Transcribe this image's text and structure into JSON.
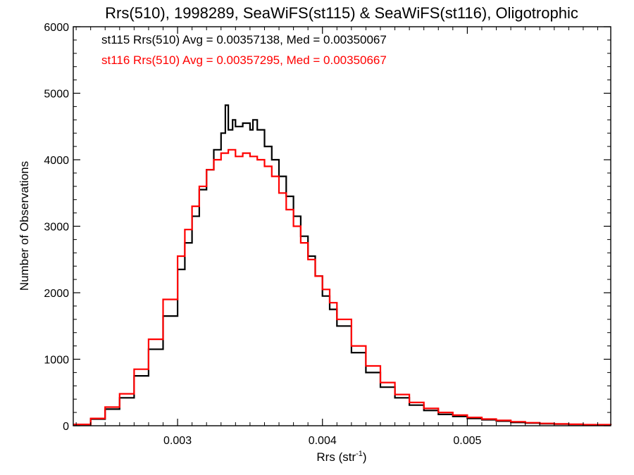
{
  "chart_data": {
    "type": "line",
    "title": "Rrs(510), 1998289, SeaWiFS(st115) & SeaWiFS(st116), Oligotrophic",
    "xlabel": "Rrs (str",
    "xlabel_superscript": "-1",
    "xlabel_suffix": ")",
    "ylabel": "Number of Observations",
    "xlim": [
      0.00228,
      0.00599
    ],
    "ylim": [
      0,
      6000
    ],
    "x_ticks": [
      "0.003",
      "0.004",
      "0.005"
    ],
    "x_tick_values": [
      0.003,
      0.004,
      0.005
    ],
    "y_ticks": [
      "0",
      "1000",
      "2000",
      "3000",
      "4000",
      "5000",
      "6000"
    ],
    "y_tick_values": [
      0,
      1000,
      2000,
      3000,
      4000,
      5000,
      6000
    ],
    "grid": false,
    "annotations": [
      {
        "text": "st115 Rrs(510) Avg = 0.00357138, Med = 0.00350067",
        "color": "#000000"
      },
      {
        "text": "st116 Rrs(510) Avg = 0.00357295, Med = 0.00350667",
        "color": "#ff0000"
      }
    ],
    "series": [
      {
        "color": "#000000",
        "x": [
          0.00228,
          0.0024,
          0.0025,
          0.0026,
          0.0027,
          0.0028,
          0.0029,
          0.003,
          0.00305,
          0.0031,
          0.00315,
          0.0032,
          0.00325,
          0.0033,
          0.00333,
          0.00335,
          0.00338,
          0.0034,
          0.00345,
          0.0035,
          0.00352,
          0.00355,
          0.0036,
          0.00365,
          0.0037,
          0.00375,
          0.0038,
          0.00385,
          0.0039,
          0.00395,
          0.004,
          0.00405,
          0.0041,
          0.0042,
          0.0043,
          0.0044,
          0.0045,
          0.0046,
          0.0047,
          0.0048,
          0.0049,
          0.005,
          0.0051,
          0.0052,
          0.0053,
          0.0054,
          0.0055,
          0.0056,
          0.0057,
          0.0058,
          0.00599
        ],
        "y": [
          20,
          100,
          250,
          420,
          750,
          1150,
          1650,
          2350,
          2750,
          3150,
          3550,
          3850,
          4150,
          4400,
          4820,
          4450,
          4600,
          4500,
          4550,
          4450,
          4600,
          4450,
          4200,
          4000,
          3750,
          3450,
          3150,
          2850,
          2550,
          2250,
          1950,
          1750,
          1500,
          1100,
          800,
          580,
          420,
          310,
          230,
          170,
          140,
          110,
          90,
          70,
          50,
          40,
          30,
          25,
          20,
          15,
          10
        ]
      },
      {
        "color": "#ff0000",
        "x": [
          0.00228,
          0.0024,
          0.0025,
          0.0026,
          0.0027,
          0.0028,
          0.0029,
          0.003,
          0.00305,
          0.0031,
          0.00315,
          0.0032,
          0.00325,
          0.0033,
          0.00335,
          0.0034,
          0.00345,
          0.0035,
          0.00355,
          0.0036,
          0.00365,
          0.0037,
          0.00375,
          0.0038,
          0.00385,
          0.0039,
          0.00395,
          0.004,
          0.00405,
          0.0041,
          0.0042,
          0.0043,
          0.0044,
          0.0045,
          0.0046,
          0.0047,
          0.0048,
          0.0049,
          0.005,
          0.0051,
          0.0052,
          0.0053,
          0.0054,
          0.0055,
          0.0056,
          0.0057,
          0.0058,
          0.00599
        ],
        "y": [
          20,
          110,
          280,
          480,
          850,
          1300,
          1900,
          2550,
          2950,
          3300,
          3600,
          3850,
          4000,
          4100,
          4150,
          4050,
          4100,
          4050,
          4000,
          3900,
          3750,
          3500,
          3250,
          3000,
          2750,
          2500,
          2250,
          2050,
          1850,
          1600,
          1200,
          900,
          650,
          470,
          350,
          260,
          200,
          160,
          125,
          100,
          80,
          60,
          45,
          35,
          28,
          22,
          16,
          10
        ]
      }
    ]
  }
}
